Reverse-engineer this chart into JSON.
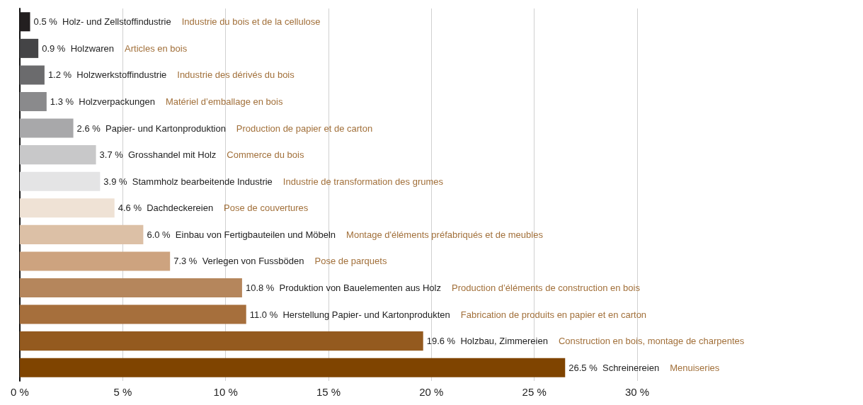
{
  "chart_data": {
    "type": "bar",
    "orientation": "horizontal",
    "categories": [
      "Holz- und Zellstoffindustrie",
      "Holzwaren",
      "Holzwerkstoffindustrie",
      "Holzverpackungen",
      "Papier- und Kartonproduktion",
      "Grosshandel mit Holz",
      "Stammholz bearbeitende Industrie",
      "Dachdeckereien",
      "Einbau von Fertigbauteilen und Möbeln",
      "Verlegen von Fussböden",
      "Produktion von Bauelementen aus Holz",
      "Herstellung Papier- und Kartonprodukten",
      "Holzbau, Zimmereien",
      "Schreinereien"
    ],
    "values": [
      0.5,
      0.9,
      1.2,
      1.3,
      2.6,
      3.7,
      3.9,
      4.6,
      6.0,
      7.3,
      10.8,
      11.0,
      19.6,
      26.5
    ],
    "value_labels": [
      "0.5 %",
      "0.9 %",
      "1.2 %",
      "1.3 %",
      "2.6 %",
      "3.7 %",
      "3.9 %",
      "4.6 %",
      "6.0 %",
      "7.3 %",
      "10.8 %",
      "11.0 %",
      "19.6 %",
      "26.5 %"
    ],
    "colors": [
      "#231f20",
      "#444446",
      "#6b6b6d",
      "#8a8a8c",
      "#a8a8aa",
      "#c8c8c9",
      "#e4e4e5",
      "#efe2d5",
      "#dcc0a6",
      "#cda37f",
      "#b5865c",
      "#a66f3c",
      "#945a1f",
      "#7f4400"
    ],
    "annotations": [
      "Industrie du bois et de la cellulose",
      "Articles en bois",
      "Industrie des dérivés du bois",
      "Matériel d’emballage en bois",
      "Production de papier et de carton",
      "Commerce du bois",
      "Industrie de transformation des grumes",
      "Pose de couvertures",
      "Montage d'éléments préfabriqués et de meubles",
      "Pose de parquets",
      "Production d’éléments de construction en bois",
      "Fabrication de produits en papier et en carton",
      "Construction en bois, montage de charpentes",
      "Menuiseries"
    ],
    "xlim": [
      0,
      30
    ],
    "xticks": [
      {
        "value": 0,
        "label": "0 %"
      },
      {
        "value": 5,
        "label": "5 %"
      },
      {
        "value": 10,
        "label": "10 %"
      },
      {
        "value": 15,
        "label": "15 %"
      },
      {
        "value": 20,
        "label": "20 %"
      },
      {
        "value": 25,
        "label": "25 %"
      },
      {
        "value": 30,
        "label": "30 %"
      }
    ],
    "grid": "x",
    "tick_labels": "x"
  }
}
